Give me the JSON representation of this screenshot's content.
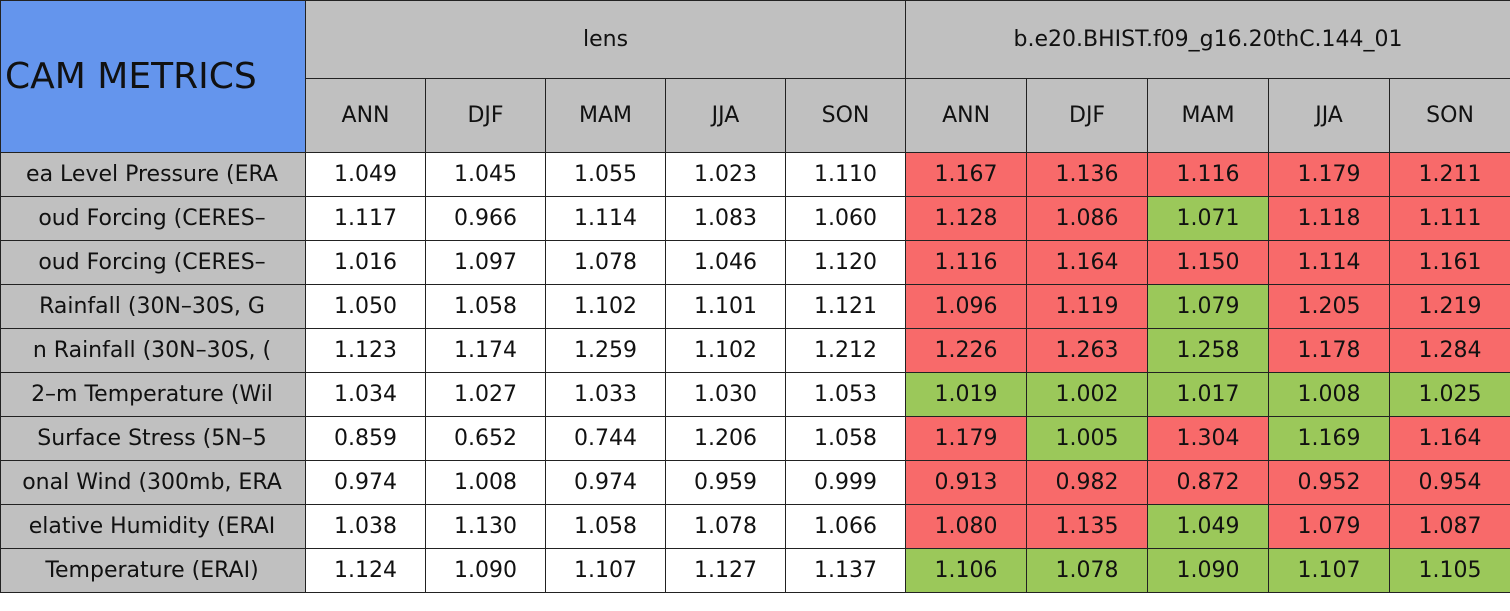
{
  "table": {
    "title": "CAM METRICS",
    "groups": [
      "lens",
      "b.e20.BHIST.f09_g16.20thC.144_01"
    ],
    "seasons": [
      "ANN",
      "DJF",
      "MAM",
      "JJA",
      "SON"
    ],
    "title_color": "#6495ed",
    "header_color": "#c0c0c0",
    "rows": [
      {
        "label": "ea Level Pressure (ERA",
        "lens": [
          "1.049",
          "1.045",
          "1.055",
          "1.023",
          "1.110"
        ],
        "bhist": [
          "1.167",
          "1.136",
          "1.116",
          "1.179",
          "1.211"
        ],
        "bhist_colors": [
          "#f86a6a",
          "#f86a6a",
          "#f86a6a",
          "#f86a6a",
          "#f86a6a"
        ]
      },
      {
        "label": "oud Forcing (CERES–",
        "lens": [
          "1.117",
          "0.966",
          "1.114",
          "1.083",
          "1.060"
        ],
        "bhist": [
          "1.128",
          "1.086",
          "1.071",
          "1.118",
          "1.111"
        ],
        "bhist_colors": [
          "#f86a6a",
          "#f86a6a",
          "#9bc85a",
          "#f86a6a",
          "#f86a6a"
        ]
      },
      {
        "label": "oud Forcing (CERES–",
        "lens": [
          "1.016",
          "1.097",
          "1.078",
          "1.046",
          "1.120"
        ],
        "bhist": [
          "1.116",
          "1.164",
          "1.150",
          "1.114",
          "1.161"
        ],
        "bhist_colors": [
          "#f86a6a",
          "#f86a6a",
          "#f86a6a",
          "#f86a6a",
          "#f86a6a"
        ]
      },
      {
        "label": "Rainfall (30N–30S, G",
        "lens": [
          "1.050",
          "1.058",
          "1.102",
          "1.101",
          "1.121"
        ],
        "bhist": [
          "1.096",
          "1.119",
          "1.079",
          "1.205",
          "1.219"
        ],
        "bhist_colors": [
          "#f86a6a",
          "#f86a6a",
          "#9bc85a",
          "#f86a6a",
          "#f86a6a"
        ]
      },
      {
        "label": "n Rainfall (30N–30S, (",
        "lens": [
          "1.123",
          "1.174",
          "1.259",
          "1.102",
          "1.212"
        ],
        "bhist": [
          "1.226",
          "1.263",
          "1.258",
          "1.178",
          "1.284"
        ],
        "bhist_colors": [
          "#f86a6a",
          "#f86a6a",
          "#9bc85a",
          "#f86a6a",
          "#f86a6a"
        ]
      },
      {
        "label": "2–m Temperature (Wil",
        "lens": [
          "1.034",
          "1.027",
          "1.033",
          "1.030",
          "1.053"
        ],
        "bhist": [
          "1.019",
          "1.002",
          "1.017",
          "1.008",
          "1.025"
        ],
        "bhist_colors": [
          "#9bc85a",
          "#9bc85a",
          "#9bc85a",
          "#9bc85a",
          "#9bc85a"
        ]
      },
      {
        "label": "Surface Stress (5N–5",
        "lens": [
          "0.859",
          "0.652",
          "0.744",
          "1.206",
          "1.058"
        ],
        "bhist": [
          "1.179",
          "1.005",
          "1.304",
          "1.169",
          "1.164"
        ],
        "bhist_colors": [
          "#f86a6a",
          "#9bc85a",
          "#f86a6a",
          "#9bc85a",
          "#f86a6a"
        ]
      },
      {
        "label": "onal Wind (300mb, ERA",
        "lens": [
          "0.974",
          "1.008",
          "0.974",
          "0.959",
          "0.999"
        ],
        "bhist": [
          "0.913",
          "0.982",
          "0.872",
          "0.952",
          "0.954"
        ],
        "bhist_colors": [
          "#f86a6a",
          "#f86a6a",
          "#f86a6a",
          "#f86a6a",
          "#f86a6a"
        ]
      },
      {
        "label": "elative Humidity (ERAI",
        "lens": [
          "1.038",
          "1.130",
          "1.058",
          "1.078",
          "1.066"
        ],
        "bhist": [
          "1.080",
          "1.135",
          "1.049",
          "1.079",
          "1.087"
        ],
        "bhist_colors": [
          "#f86a6a",
          "#f86a6a",
          "#9bc85a",
          "#f86a6a",
          "#f86a6a"
        ]
      },
      {
        "label": "Temperature (ERAI)",
        "lens": [
          "1.124",
          "1.090",
          "1.107",
          "1.127",
          "1.137"
        ],
        "bhist": [
          "1.106",
          "1.078",
          "1.090",
          "1.107",
          "1.105"
        ],
        "bhist_colors": [
          "#9bc85a",
          "#9bc85a",
          "#9bc85a",
          "#9bc85a",
          "#9bc85a"
        ]
      }
    ]
  }
}
